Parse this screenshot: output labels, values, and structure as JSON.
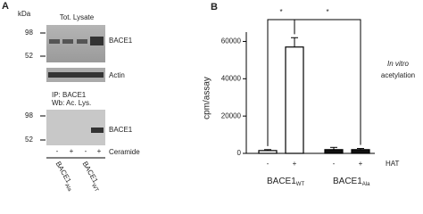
{
  "panel_a": {
    "label": "A",
    "unit": "kDa",
    "blot1": {
      "title": "Tot. Lysate",
      "markers": [
        98,
        52
      ],
      "bands": [
        "BACE1",
        "Actin"
      ]
    },
    "blot2": {
      "title": [
        "IP: BACE1",
        "Wb: Ac. Lys."
      ],
      "markers": [
        98,
        52
      ],
      "band": "BACE1"
    },
    "treatment": {
      "signs": [
        "-",
        "+",
        "-",
        "+"
      ],
      "label": "Ceramide"
    },
    "groups": [
      {
        "base": "BACE1",
        "sub": "Ala"
      },
      {
        "base": "BACE1",
        "sub": "WT"
      }
    ]
  },
  "chart_data": {
    "type": "bar",
    "panel_label": "B",
    "y_label": "cpm/assay",
    "categories": [
      "-",
      "+",
      "-",
      "+"
    ],
    "groups": [
      {
        "base": "BACE1",
        "sub": "WT"
      },
      {
        "base": "BACE1",
        "sub": "Ala"
      }
    ],
    "values": [
      1500,
      57000,
      2000,
      2000
    ],
    "errors": [
      500,
      5000,
      1200,
      600
    ],
    "colors": [
      "#ffffff",
      "#ffffff",
      "#111111",
      "#111111"
    ],
    "x_label": "HAT",
    "annotation": [
      "In vitro",
      "acetylation"
    ],
    "significance": [
      "*",
      "*"
    ],
    "ylim": [
      0,
      65000
    ],
    "yticks": [
      0,
      20000,
      40000,
      60000
    ]
  }
}
